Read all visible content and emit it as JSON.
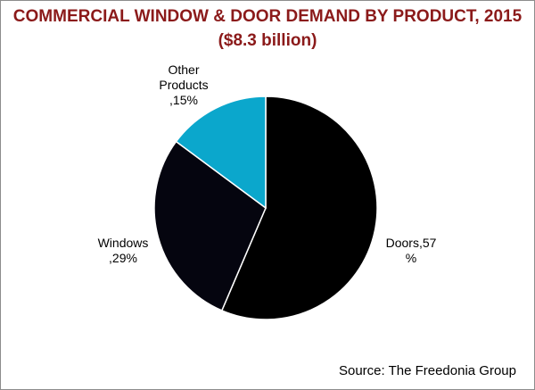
{
  "chart_data": {
    "type": "pie",
    "title": "COMMERCIAL WINDOW & DOOR DEMAND BY PRODUCT, 2015",
    "subtitle": "($8.3 billion)",
    "slices": [
      {
        "name": "Doors",
        "value": 57,
        "label_lines": [
          "Doors,57",
          "%"
        ],
        "color": "#000000"
      },
      {
        "name": "Windows",
        "value": 29,
        "label_lines": [
          "Windows",
          ",29%"
        ],
        "color": "#05050f"
      },
      {
        "name": "Other Products",
        "value": 15,
        "label_lines": [
          "Other",
          "Products",
          ",15%"
        ],
        "color": "#0ba7cc"
      }
    ],
    "source": "Source: The Freedonia Group"
  }
}
